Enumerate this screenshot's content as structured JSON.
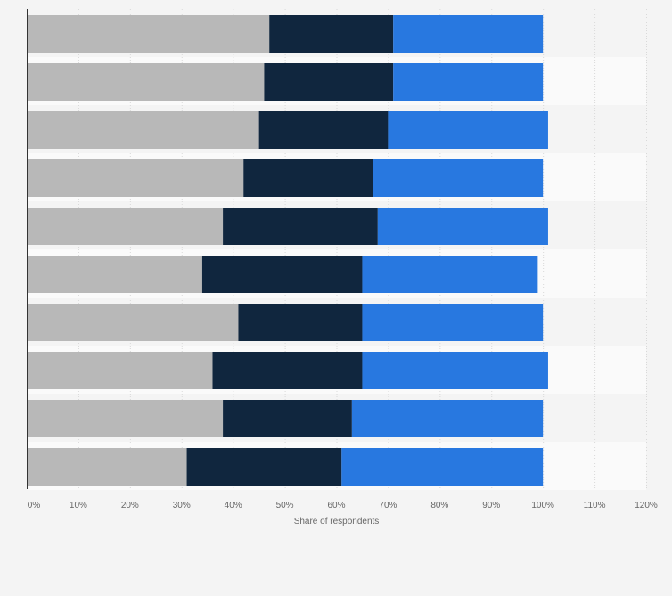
{
  "chart_data": {
    "type": "bar",
    "orientation": "horizontal",
    "stacked": true,
    "title": "",
    "xlabel": "Share of respondents",
    "ylabel": "",
    "xlim": [
      0,
      120
    ],
    "x_ticks": [
      "0%",
      "10%",
      "20%",
      "30%",
      "40%",
      "50%",
      "60%",
      "70%",
      "80%",
      "90%",
      "100%",
      "110%",
      "120%"
    ],
    "grid": true,
    "legend": "none",
    "categories": [
      "",
      "",
      "",
      "",
      "",
      "",
      "",
      "",
      "",
      ""
    ],
    "series": [
      {
        "color": "#b8b8b8",
        "values": [
          47,
          46,
          45,
          42,
          38,
          34,
          41,
          36,
          38,
          31
        ]
      },
      {
        "color": "#10263e",
        "values": [
          24,
          25,
          25,
          25,
          30,
          31,
          24,
          29,
          25,
          30
        ]
      },
      {
        "color": "#2878e0",
        "values": [
          29,
          29,
          31,
          33,
          33,
          34,
          35,
          36,
          37,
          39
        ]
      }
    ]
  }
}
